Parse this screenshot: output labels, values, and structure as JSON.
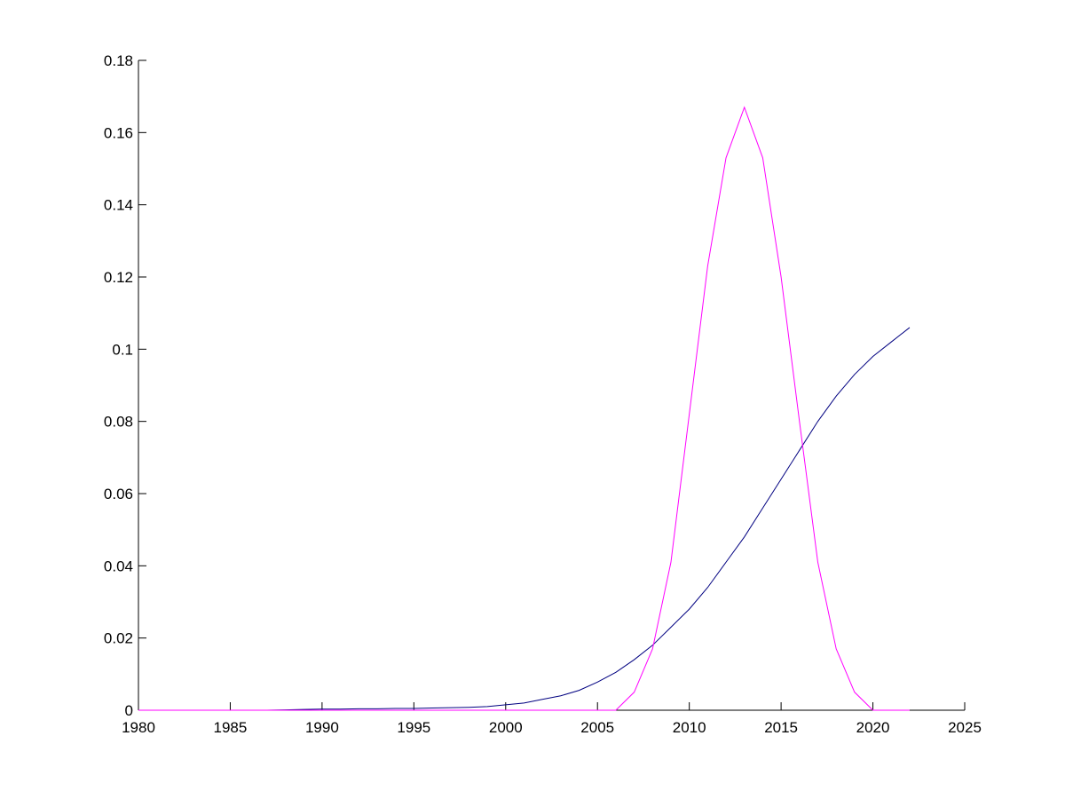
{
  "chart_data": {
    "type": "line",
    "x": [
      1980,
      1981,
      1982,
      1983,
      1984,
      1985,
      1986,
      1987,
      1988,
      1989,
      1990,
      1991,
      1992,
      1993,
      1994,
      1995,
      1996,
      1997,
      1998,
      1999,
      2000,
      2001,
      2002,
      2003,
      2004,
      2005,
      2006,
      2007,
      2008,
      2009,
      2010,
      2011,
      2012,
      2013,
      2014,
      2015,
      2016,
      2017,
      2018,
      2019,
      2020,
      2021,
      2022
    ],
    "series": [
      {
        "color": "#000080",
        "values": [
          0,
          0,
          0,
          0,
          0,
          0,
          0,
          0,
          0.0001,
          0.0002,
          0.0003,
          0.0003,
          0.0004,
          0.0004,
          0.0005,
          0.0005,
          0.0006,
          0.0007,
          0.0008,
          0.001,
          0.0015,
          0.002,
          0.003,
          0.004,
          0.0055,
          0.0078,
          0.0105,
          0.014,
          0.018,
          0.023,
          0.028,
          0.034,
          0.041,
          0.048,
          0.056,
          0.064,
          0.072,
          0.08,
          0.087,
          0.093,
          0.098,
          0.102,
          0.106
        ]
      },
      {
        "color": "#ff00ff",
        "values": [
          0,
          0,
          0,
          0,
          0,
          0,
          0,
          0,
          0,
          0,
          0,
          0,
          0,
          0,
          0,
          0,
          0,
          0,
          0,
          0,
          0,
          0,
          0,
          0,
          0,
          0,
          0,
          0.005,
          0.017,
          0.041,
          0.082,
          0.123,
          0.153,
          0.167,
          0.153,
          0.12,
          0.08,
          0.041,
          0.017,
          0.005,
          0,
          0,
          0
        ]
      }
    ],
    "xlim": [
      1980,
      2025
    ],
    "xticks": [
      1980,
      1985,
      1990,
      1995,
      2000,
      2005,
      2010,
      2015,
      2020,
      2025
    ],
    "ylim": [
      0,
      0.18
    ],
    "yticks": [
      0,
      0.02,
      0.04,
      0.06,
      0.08,
      0.1,
      0.12,
      0.14,
      0.16,
      0.18
    ]
  }
}
